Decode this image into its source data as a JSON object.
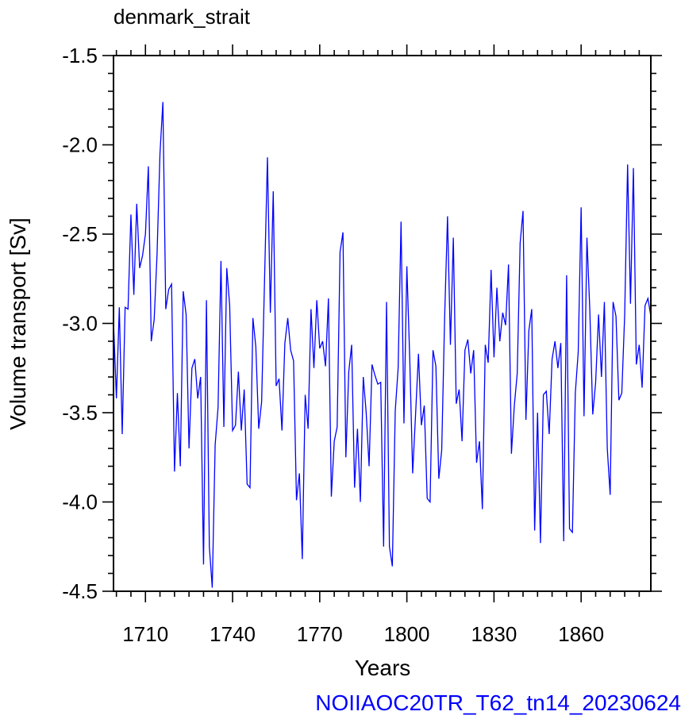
{
  "colors": {
    "series": "#0000ff",
    "axis": "#000000",
    "footer": "#0000ff"
  },
  "chart_data": {
    "type": "line",
    "title": "denmark_strait",
    "xlabel": "Years",
    "ylabel": "Volume transport [Sv]",
    "xlim": [
      1699,
      1884
    ],
    "ylim": [
      -4.5,
      -1.5
    ],
    "xticks": [
      1710,
      1740,
      1770,
      1800,
      1830,
      1860
    ],
    "yticks": [
      -1.5,
      -2.0,
      -2.5,
      -3.0,
      -3.5,
      -4.0,
      -4.5
    ],
    "ytick_labels": [
      "-1.5",
      "-2.0",
      "-2.5",
      "-3.0",
      "-3.5",
      "-4.0",
      "-4.5"
    ],
    "grid": false,
    "series": [
      {
        "x_start": 1699,
        "x_step": 1,
        "values": [
          -2.99,
          -3.42,
          -2.91,
          -3.62,
          -2.91,
          -2.92,
          -2.39,
          -2.84,
          -2.33,
          -2.69,
          -2.62,
          -2.5,
          -2.12,
          -3.1,
          -2.98,
          -2.61,
          -2.05,
          -1.76,
          -2.92,
          -2.81,
          -2.78,
          -3.83,
          -3.39,
          -3.8,
          -2.82,
          -2.95,
          -3.7,
          -3.25,
          -3.2,
          -3.42,
          -3.3,
          -4.35,
          -2.87,
          -4.25,
          -4.48,
          -3.68,
          -3.47,
          -2.65,
          -3.58,
          -2.69,
          -2.9,
          -3.6,
          -3.57,
          -3.27,
          -3.6,
          -3.37,
          -3.9,
          -3.92,
          -2.97,
          -3.13,
          -3.59,
          -3.44,
          -2.76,
          -2.07,
          -2.94,
          -2.26,
          -3.35,
          -3.31,
          -3.6,
          -3.11,
          -2.97,
          -3.15,
          -3.21,
          -3.99,
          -3.84,
          -4.32,
          -3.4,
          -3.59,
          -2.92,
          -3.25,
          -2.87,
          -3.14,
          -3.1,
          -3.24,
          -2.86,
          -3.97,
          -3.66,
          -3.58,
          -2.6,
          -2.49,
          -3.75,
          -3.27,
          -3.12,
          -3.92,
          -3.59,
          -4.0,
          -3.3,
          -3.5,
          -3.8,
          -3.23,
          -3.29,
          -3.34,
          -3.33,
          -4.25,
          -2.88,
          -4.25,
          -4.36,
          -3.49,
          -3.25,
          -2.43,
          -3.56,
          -2.68,
          -3.2,
          -3.84,
          -3.51,
          -3.17,
          -3.57,
          -3.46,
          -3.98,
          -4.0,
          -3.15,
          -3.24,
          -3.87,
          -3.71,
          -2.97,
          -2.4,
          -3.12,
          -2.52,
          -3.45,
          -3.37,
          -3.66,
          -3.15,
          -3.09,
          -3.28,
          -3.15,
          -3.78,
          -3.66,
          -4.04,
          -3.12,
          -3.22,
          -2.7,
          -3.19,
          -2.8,
          -3.1,
          -2.94,
          -3.01,
          -2.67,
          -3.73,
          -3.46,
          -3.28,
          -2.55,
          -2.37,
          -3.54,
          -3.04,
          -2.92,
          -4.16,
          -3.5,
          -4.23,
          -3.4,
          -3.38,
          -3.62,
          -3.2,
          -3.1,
          -3.25,
          -3.11,
          -4.22,
          -2.73,
          -4.15,
          -4.17,
          -3.39,
          -3.16,
          -2.35,
          -3.52,
          -2.52,
          -2.93,
          -3.51,
          -3.33,
          -2.95,
          -3.3,
          -2.88,
          -3.7,
          -3.96,
          -2.88,
          -2.96,
          -3.43,
          -3.39,
          -2.95,
          -2.11,
          -2.89,
          -2.13,
          -3.23,
          -3.12,
          -3.36,
          -2.9,
          -2.86,
          -2.96
        ]
      }
    ],
    "footer": "NOIIAOC20TR_T62_tn14_20230624"
  }
}
